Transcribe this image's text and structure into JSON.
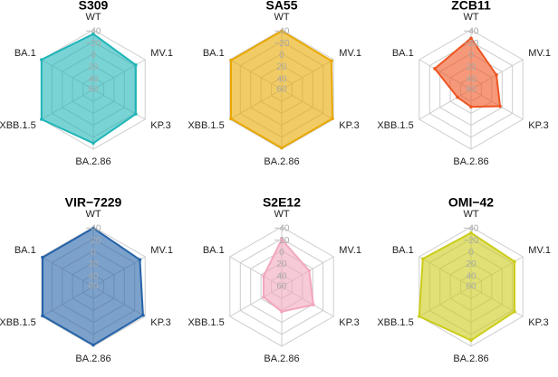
{
  "chart_data": [
    {
      "type": "radar",
      "title": "S309",
      "categories": [
        "WT",
        "MV.1",
        "KP.3",
        "BA.2.86",
        "XBB.1.5",
        "BA.1"
      ],
      "values": [
        -33,
        -22,
        -22,
        -30,
        -40,
        -40
      ],
      "color": "#1fb5b8",
      "rlim": [
        60,
        -40
      ],
      "rticks": [
        {
          "value": -40,
          "label": "−40"
        },
        {
          "value": -20,
          "label": "−20"
        },
        0,
        20,
        40,
        60
      ]
    },
    {
      "type": "radar",
      "title": "SA55",
      "categories": [
        "WT",
        "MV.1",
        "KP.3",
        "BA.2.86",
        "XBB.1.5",
        "BA.1"
      ],
      "values": [
        -38,
        -36,
        -38,
        -38,
        -38,
        -38
      ],
      "color": "#e8a800",
      "rlim": [
        60,
        -40
      ],
      "rticks": [
        {
          "value": -40,
          "label": "−40"
        },
        {
          "value": -20,
          "label": "−20"
        },
        0,
        20,
        40,
        60
      ]
    },
    {
      "type": "radar",
      "title": "ZCB11",
      "categories": [
        "WT",
        "MV.1",
        "KP.3",
        "BA.2.86",
        "XBB.1.5",
        "BA.1"
      ],
      "values": [
        -26,
        11,
        4,
        31,
        34,
        -10
      ],
      "color": "#ee5522",
      "rlim": [
        60,
        -40
      ],
      "rticks": [
        {
          "value": -40,
          "label": "−40"
        },
        {
          "value": -20,
          "label": "−20"
        },
        0,
        20,
        40,
        60
      ]
    },
    {
      "type": "radar",
      "title": "VIR−7229",
      "categories": [
        "WT",
        "MV.1",
        "KP.3",
        "BA.2.86",
        "XBB.1.5",
        "BA.1"
      ],
      "values": [
        -38,
        -30,
        -36,
        -38,
        -38,
        -38
      ],
      "color": "#2563a8",
      "rlim": [
        60,
        -40
      ],
      "rticks": [
        {
          "value": -40,
          "label": "−40"
        },
        {
          "value": -20,
          "label": "−20"
        },
        0,
        20,
        40,
        60
      ]
    },
    {
      "type": "radar",
      "title": "S2E12",
      "categories": [
        "WT",
        "MV.1",
        "KP.3",
        "BA.2.86",
        "XBB.1.5",
        "BA.1"
      ],
      "values": [
        -19,
        7,
        -1,
        18,
        25,
        25
      ],
      "color": "#f2a6bc",
      "rlim": [
        60,
        -40
      ],
      "rticks": [
        {
          "value": -40,
          "label": "−40"
        },
        {
          "value": -20,
          "label": "−20"
        },
        0,
        20,
        40,
        60
      ]
    },
    {
      "type": "radar",
      "title": "OMI−42",
      "categories": [
        "WT",
        "MV.1",
        "KP.3",
        "BA.2.86",
        "XBB.1.5",
        "BA.1"
      ],
      "values": [
        -30,
        -24,
        -24,
        -30,
        -40,
        -33
      ],
      "color": "#cccc1a",
      "rlim": [
        60,
        -40
      ],
      "rticks": [
        {
          "value": -40,
          "label": "−40"
        },
        {
          "value": -20,
          "label": "−20"
        },
        0,
        20,
        40,
        60
      ]
    }
  ]
}
